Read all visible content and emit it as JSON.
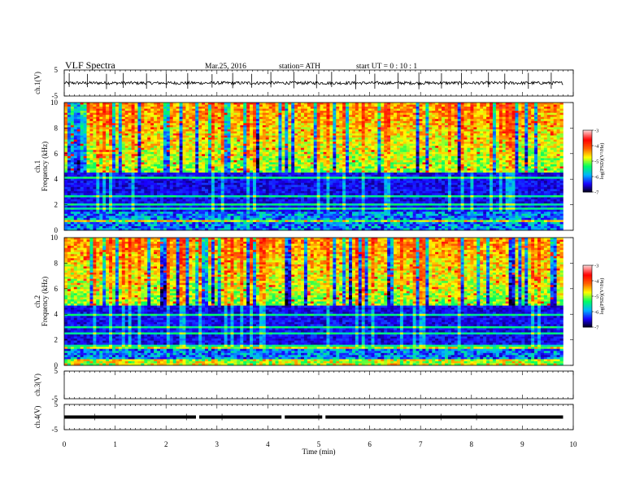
{
  "header": {
    "title": "VLF  Spectra",
    "date": "Mar.25, 2016",
    "station": "station= ATH",
    "start": "start  UT  =   0 : 10 : 1"
  },
  "chart_data": {
    "type": "heatmap",
    "x_axis": {
      "label": "Time  (min)",
      "range": [
        0,
        10
      ],
      "ticks": [
        0,
        1,
        2,
        3,
        4,
        5,
        6,
        7,
        8,
        9,
        10
      ],
      "data_end": 9.8
    },
    "panels": [
      {
        "name": "ch.1(V)",
        "kind": "waveform",
        "y_range": [
          -5,
          5
        ],
        "y_ticks": [
          "5",
          "-5"
        ],
        "trace_level": 0,
        "trace_noise": 0.6,
        "spikes_sampled_min": [
          0.1,
          0.45,
          0.8,
          1.2,
          1.65,
          2.05,
          2.45,
          2.9,
          3.3,
          3.7,
          4.05,
          4.5,
          4.95,
          5.3,
          5.75,
          6.15,
          6.6,
          7.0,
          7.45,
          7.85,
          8.3,
          8.7,
          9.15,
          9.55
        ]
      },
      {
        "name": "ch.1\nFrequency  (kHz)",
        "kind": "spectrogram",
        "y_range": [
          0,
          10
        ],
        "y_ticks": [
          "0",
          "2",
          "4",
          "6",
          "8",
          "10"
        ],
        "noise_floor_khz": 4.5,
        "colorbar": {
          "label": "log(PSD)(V²/Hz)",
          "range": [
            -7,
            -3
          ],
          "ticks": [
            "-3",
            "-4",
            "-5",
            "-6",
            "-7"
          ]
        }
      },
      {
        "name": "ch.2\nFrequency  (kHz)",
        "kind": "spectrogram",
        "y_range": [
          0,
          10
        ],
        "y_ticks": [
          "0",
          "2",
          "4",
          "6",
          "8",
          "10"
        ],
        "noise_floor_khz": 4.7,
        "colorbar": {
          "label": "log(PSD)(V²/Hz)",
          "range": [
            -7,
            -3
          ],
          "ticks": [
            "-3",
            "-4",
            "-5",
            "-6",
            "-7"
          ]
        }
      },
      {
        "name": "ch.3(V)",
        "kind": "waveform",
        "y_range": [
          -5,
          5
        ],
        "y_ticks": [
          "5",
          "-5"
        ],
        "trace_level": null
      },
      {
        "name": "ch.4(V)",
        "kind": "waveform",
        "y_range": [
          -5,
          5
        ],
        "y_ticks": [
          "5",
          "-5"
        ],
        "trace_level": 0,
        "gaps_min": [
          2.62,
          4.3,
          5.1
        ]
      }
    ],
    "colormap": [
      "#000000",
      "#1a00ff",
      "#00b4ff",
      "#00ff60",
      "#ffff00",
      "#ff6000",
      "#ff0000",
      "#ffc8c8"
    ]
  }
}
